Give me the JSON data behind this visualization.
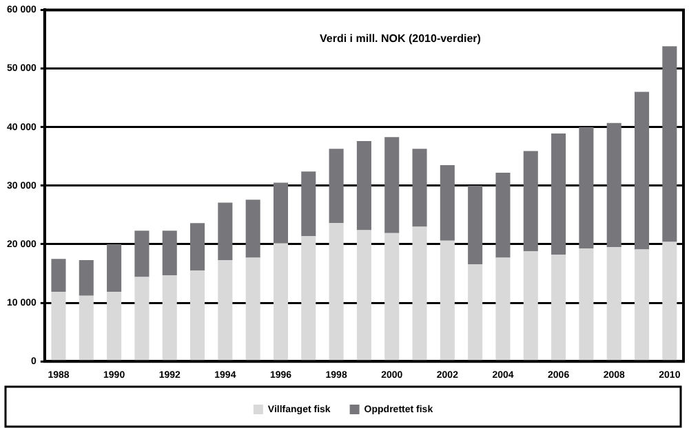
{
  "chart_data": {
    "type": "bar",
    "title": "Verdi i mill. NOK (2010-verdier)",
    "stacked": true,
    "categories": [
      "1988",
      null,
      "1990",
      null,
      "1992",
      null,
      "1994",
      null,
      "1996",
      null,
      "1998",
      null,
      "2000",
      null,
      "2002",
      null,
      "2004",
      null,
      "2006",
      null,
      "2008",
      null,
      "2010"
    ],
    "series": [
      {
        "name": "Villfanget fisk",
        "color": "#d9d9d9",
        "values": [
          11900,
          11200,
          11900,
          14400,
          14700,
          15500,
          17300,
          17700,
          20200,
          21400,
          23600,
          22400,
          21900,
          23000,
          20600,
          16600,
          17700,
          18800,
          18200,
          19300,
          19500,
          19100,
          20400
        ]
      },
      {
        "name": "Oppdrettet fisk",
        "color": "#77777b",
        "values": [
          5600,
          6100,
          8100,
          7900,
          7600,
          8100,
          9800,
          9900,
          10300,
          11000,
          12700,
          15200,
          16400,
          13300,
          12900,
          13400,
          14500,
          17100,
          20700,
          20700,
          21200,
          26900,
          33400
        ]
      }
    ],
    "ylim": [
      0,
      60000
    ],
    "yticks": [
      0,
      {
        "value": 10000,
        "label": "10 000"
      },
      {
        "value": 20000,
        "label": "20 000"
      },
      {
        "value": 30000,
        "label": "30 000"
      },
      {
        "value": 40000,
        "label": "40 000"
      },
      {
        "value": 50000,
        "label": "50 000"
      },
      {
        "value": 60000,
        "label": "60 000"
      }
    ],
    "grid": "y",
    "legend": "bottom"
  }
}
